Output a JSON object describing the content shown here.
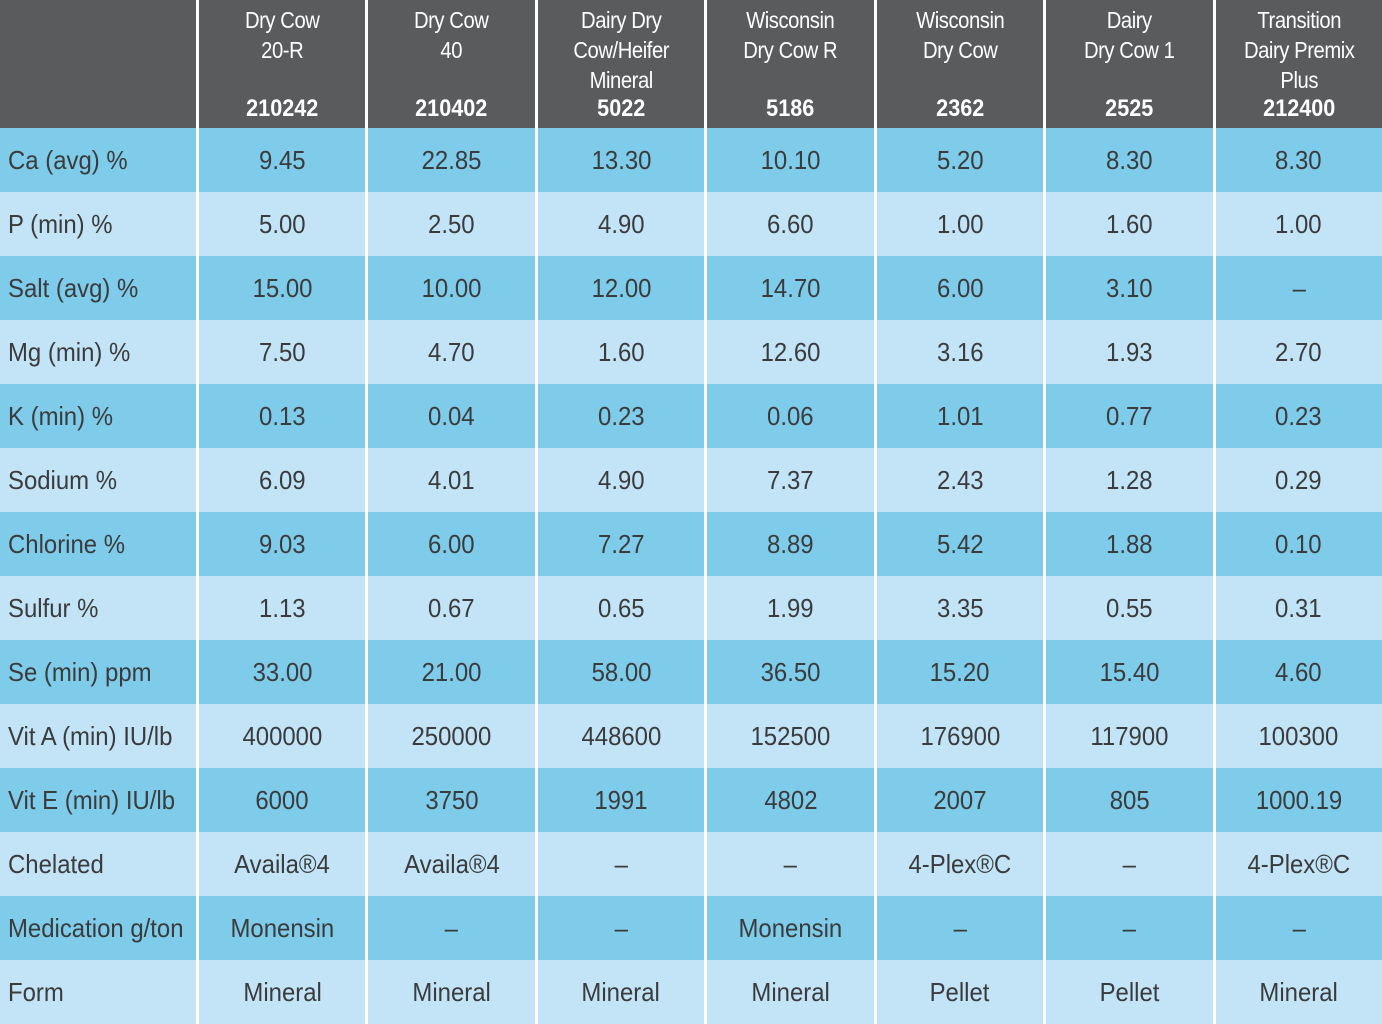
{
  "products": [
    {
      "name": [
        "Dry Cow",
        "20-R"
      ],
      "code": "210242"
    },
    {
      "name": [
        "Dry Cow",
        "40"
      ],
      "code": "210402"
    },
    {
      "name": [
        "Dairy Dry",
        "Cow/Heifer",
        "Mineral"
      ],
      "code": "5022"
    },
    {
      "name": [
        "Wisconsin",
        "Dry Cow R"
      ],
      "code": "5186"
    },
    {
      "name": [
        "Wisconsin",
        "Dry Cow"
      ],
      "code": "2362"
    },
    {
      "name": [
        "Dairy",
        "Dry Cow 1"
      ],
      "code": "2525"
    },
    {
      "name": [
        "Transition",
        "Dairy Premix",
        "Plus"
      ],
      "code": "212400"
    }
  ],
  "rows": [
    {
      "label": "Ca (avg) %",
      "values": [
        "9.45",
        "22.85",
        "13.30",
        "10.10",
        "5.20",
        "8.30",
        "8.30"
      ]
    },
    {
      "label": "P (min) %",
      "values": [
        "5.00",
        "2.50",
        "4.90",
        "6.60",
        "1.00",
        "1.60",
        "1.00"
      ]
    },
    {
      "label": "Salt (avg) %",
      "values": [
        "15.00",
        "10.00",
        "12.00",
        "14.70",
        "6.00",
        "3.10",
        "–"
      ]
    },
    {
      "label": "Mg (min) %",
      "values": [
        "7.50",
        "4.70",
        "1.60",
        "12.60",
        "3.16",
        "1.93",
        "2.70"
      ]
    },
    {
      "label": "K (min) %",
      "values": [
        "0.13",
        "0.04",
        "0.23",
        "0.06",
        "1.01",
        "0.77",
        "0.23"
      ]
    },
    {
      "label": "Sodium %",
      "values": [
        "6.09",
        "4.01",
        "4.90",
        "7.37",
        "2.43",
        "1.28",
        "0.29"
      ]
    },
    {
      "label": "Chlorine %",
      "values": [
        "9.03",
        "6.00",
        "7.27",
        "8.89",
        "5.42",
        "1.88",
        "0.10"
      ]
    },
    {
      "label": "Sulfur %",
      "values": [
        "1.13",
        "0.67",
        "0.65",
        "1.99",
        "3.35",
        "0.55",
        "0.31"
      ]
    },
    {
      "label": "Se (min) ppm",
      "values": [
        "33.00",
        "21.00",
        "58.00",
        "36.50",
        "15.20",
        "15.40",
        "4.60"
      ]
    },
    {
      "label": "Vit A (min) IU/lb",
      "values": [
        "400000",
        "250000",
        "448600",
        "152500",
        "176900",
        "117900",
        "100300"
      ]
    },
    {
      "label": "Vit E (min) IU/lb",
      "values": [
        "6000",
        "3750",
        "1991",
        "4802",
        "2007",
        "805",
        "1000.19"
      ]
    },
    {
      "label": "Chelated",
      "values": [
        "Availa®4",
        "Availa®4",
        "–",
        "–",
        "4-Plex®C",
        "–",
        "4-Plex®C"
      ]
    },
    {
      "label": "Medication g/ton",
      "values": [
        "Monensin",
        "–",
        "–",
        "Monensin",
        "–",
        "–",
        "–"
      ]
    },
    {
      "label": "Form",
      "values": [
        "Mineral",
        "Mineral",
        "Mineral",
        "Mineral",
        "Pellet",
        "Pellet",
        "Mineral"
      ]
    }
  ],
  "colors": {
    "header_bg": "#5a5b5d",
    "row_dark": "#7ecbea",
    "row_light": "#c2e4f6",
    "text": "#3a3b3d"
  }
}
